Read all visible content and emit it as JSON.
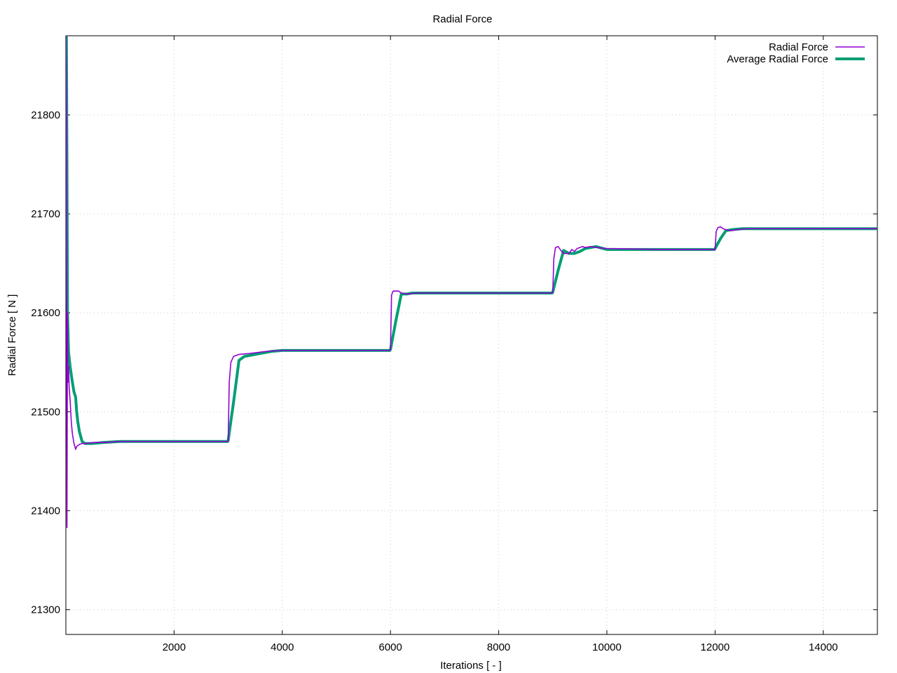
{
  "chart_data": {
    "type": "line",
    "title": "Radial Force",
    "xlabel": "Iterations [ - ]",
    "ylabel": "Radial Force [ N ]",
    "xlim": [
      0,
      15000
    ],
    "ylim": [
      21275,
      21880
    ],
    "xticks": [
      2000,
      4000,
      6000,
      8000,
      10000,
      12000,
      14000
    ],
    "yticks": [
      21300,
      21400,
      21500,
      21600,
      21700,
      21800
    ],
    "grid": true,
    "legend_position": "top-right",
    "series": [
      {
        "name": "Radial Force",
        "color": "#9400d3",
        "x": [
          0,
          10,
          20,
          30,
          40,
          50,
          60,
          80,
          100,
          120,
          150,
          180,
          200,
          250,
          300,
          400,
          500,
          700,
          1000,
          1500,
          2000,
          2500,
          2980,
          3000,
          3020,
          3050,
          3100,
          3200,
          3400,
          3700,
          4000,
          5000,
          5980,
          6000,
          6020,
          6050,
          6100,
          6150,
          6200,
          6300,
          6500,
          7000,
          8000,
          8980,
          9000,
          9020,
          9050,
          9100,
          9150,
          9200,
          9300,
          9350,
          9400,
          9450,
          9500,
          9550,
          9600,
          9700,
          9800,
          10000,
          11000,
          11980,
          12000,
          12020,
          12050,
          12100,
          12150,
          12200,
          12300,
          12400,
          12600,
          13000,
          14000,
          15000
        ],
        "values": [
          21880,
          21800,
          21383,
          21600,
          21530,
          21546,
          21525,
          21510,
          21490,
          21478,
          21468,
          21462,
          21465,
          21467,
          21468,
          21468,
          21469,
          21469,
          21470,
          21470,
          21470,
          21470,
          21470,
          21470,
          21530,
          21550,
          21556,
          21558,
          21559,
          21561,
          21562,
          21562,
          21562,
          21563,
          21618,
          21622,
          21622,
          21622,
          21620,
          21619,
          21620,
          21620,
          21620,
          21620,
          21621,
          21655,
          21666,
          21667,
          21663,
          21660,
          21660,
          21664,
          21662,
          21665,
          21666,
          21667,
          21666,
          21667,
          21666,
          21665,
          21664,
          21664,
          21664,
          21682,
          21686,
          21687,
          21685,
          21684,
          21683,
          21684,
          21685,
          21685,
          21685,
          21685
        ]
      },
      {
        "name": "Average Radial Force",
        "color": "#009e73",
        "x": [
          0,
          10,
          20,
          30,
          50,
          80,
          120,
          150,
          180,
          200,
          220,
          250,
          300,
          350,
          400,
          500,
          700,
          1000,
          1500,
          2000,
          2500,
          2990,
          3000,
          3100,
          3200,
          3300,
          3500,
          3700,
          3800,
          4000,
          5000,
          5990,
          6000,
          6100,
          6200,
          6300,
          6400,
          6600,
          7000,
          8000,
          8990,
          9000,
          9100,
          9200,
          9300,
          9400,
          9500,
          9600,
          9800,
          10000,
          11000,
          11990,
          12000,
          12100,
          12200,
          12300,
          12500,
          13000,
          14000,
          15000
        ],
        "values": [
          21880,
          21880,
          21750,
          21600,
          21560,
          21545,
          21530,
          21520,
          21515,
          21500,
          21490,
          21480,
          21470,
          21468,
          21468,
          21468,
          21469,
          21470,
          21470,
          21470,
          21470,
          21470,
          21471,
          21510,
          21552,
          21556,
          21558,
          21560,
          21561,
          21562,
          21562,
          21562,
          21563,
          21592,
          21619,
          21619,
          21620,
          21620,
          21620,
          21620,
          21620,
          21621,
          21643,
          21663,
          21660,
          21660,
          21662,
          21665,
          21667,
          21664,
          21664,
          21664,
          21665,
          21675,
          21683,
          21684,
          21685,
          21685,
          21685,
          21685
        ]
      }
    ]
  }
}
